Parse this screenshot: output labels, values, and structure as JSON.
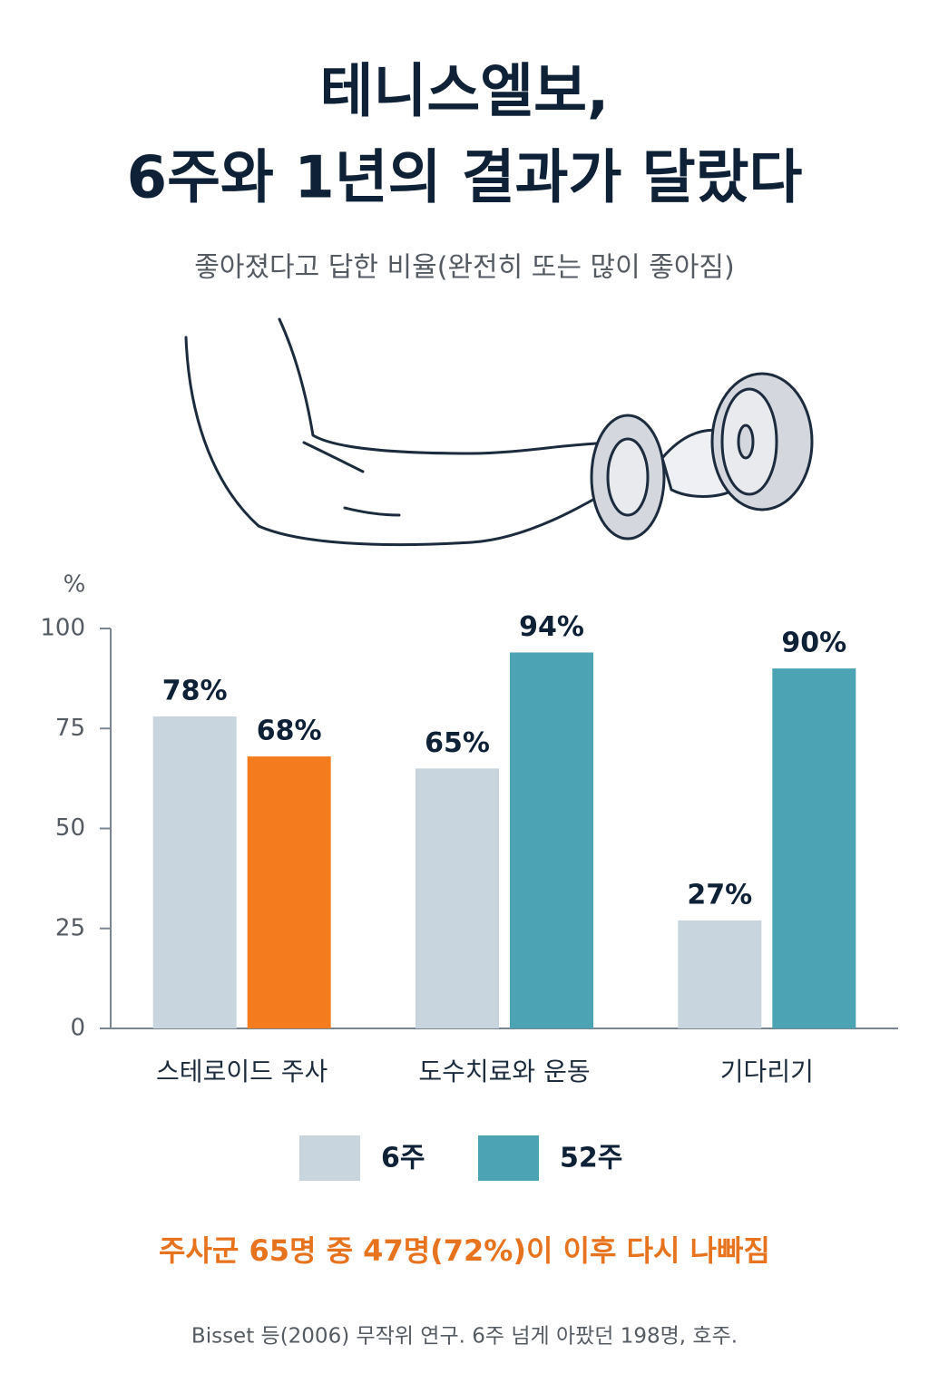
{
  "chart_data": {
    "type": "bar",
    "title": [
      "테니스엘보,",
      "6주와 1년의 결과가 달랐다"
    ],
    "subtitle": "좋아졌다고 답한 비율(완전히 또는 많이 좋아짐)",
    "y_label": "%",
    "categories": [
      "스테로이드 주사",
      "도수치료와 운동",
      "기다리기"
    ],
    "series": [
      {
        "name": "6주",
        "color": "#c8d5de",
        "values": [
          78,
          65,
          27
        ],
        "value_labels": [
          "78%",
          "65%",
          "27%"
        ]
      },
      {
        "name": "52주",
        "color": "#4ba3b4",
        "colors": [
          "#f47c1e",
          "#4ba3b4",
          "#4ba3b4"
        ],
        "values": [
          68,
          94,
          90
        ],
        "value_labels": [
          "68%",
          "94%",
          "90%"
        ]
      }
    ],
    "ylim": [
      0,
      100
    ],
    "yticks": [
      0,
      25,
      50,
      75,
      100
    ],
    "annotation": "주사군 65명 중 47명(72%)이 이후 다시 나빠짐",
    "source": "Bisset 등(2006) 무작위 연구. 6주 넘게 아팠던 198명, 호주."
  }
}
